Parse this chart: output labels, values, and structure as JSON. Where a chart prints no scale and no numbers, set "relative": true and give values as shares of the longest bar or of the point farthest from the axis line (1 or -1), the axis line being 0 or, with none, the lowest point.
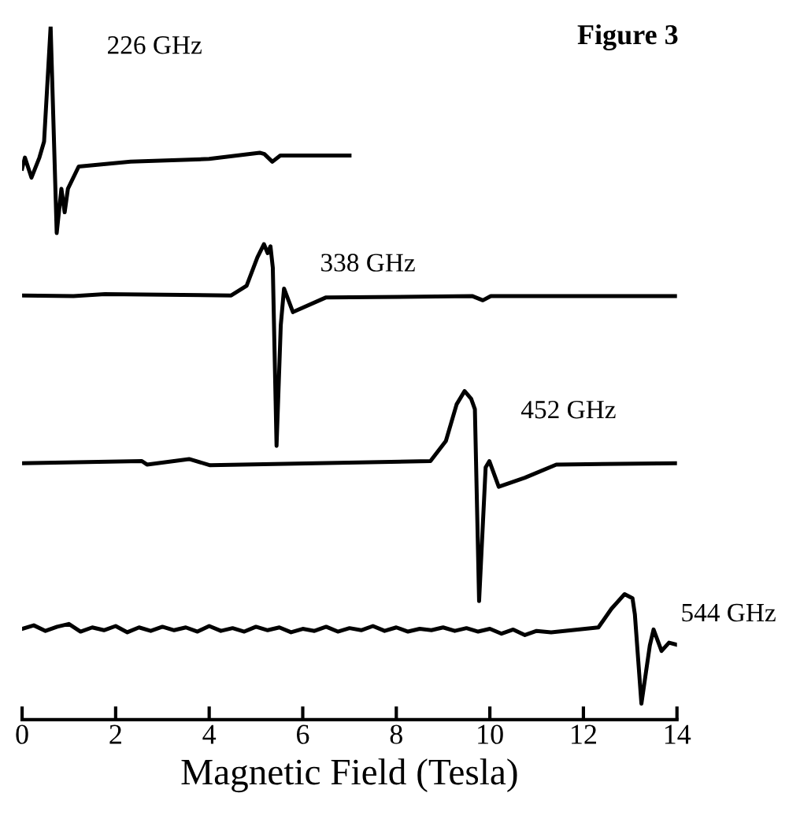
{
  "chart_data": {
    "type": "line",
    "title": "Figure 3",
    "xlabel": "Magnetic Field (Tesla)",
    "relative": true,
    "xlim": [
      0,
      14
    ],
    "xticks": [
      0,
      2,
      4,
      6,
      8,
      10,
      12,
      14
    ],
    "grid": false,
    "legend": false,
    "marker": "none",
    "line_style": "solid",
    "series": [
      {
        "name": "226 GHz",
        "color": "#000000",
        "x": [
          0,
          0.06,
          0.2,
          0.37,
          0.47,
          0.61,
          0.74,
          0.84,
          0.91,
          0.98,
          1.21,
          2.32,
          4.0,
          5.08,
          5.18,
          5.35,
          5.52,
          7.0
        ],
        "values": [
          0.795,
          0.811,
          0.782,
          0.811,
          0.834,
          1.0,
          0.702,
          0.766,
          0.732,
          0.766,
          0.798,
          0.805,
          0.809,
          0.818,
          0.816,
          0.805,
          0.814,
          0.814
        ]
      },
      {
        "name": "338 GHz",
        "color": "#000000",
        "x": [
          0,
          1.1,
          1.77,
          4.47,
          4.8,
          5.03,
          5.17,
          5.25,
          5.31,
          5.36,
          5.44,
          5.53,
          5.6,
          5.79,
          6.49,
          9.63,
          9.85,
          10.02,
          14.0
        ],
        "values": [
          0.612,
          0.611,
          0.614,
          0.612,
          0.626,
          0.667,
          0.686,
          0.673,
          0.683,
          0.652,
          0.395,
          0.569,
          0.622,
          0.588,
          0.609,
          0.611,
          0.605,
          0.611,
          0.611
        ]
      },
      {
        "name": "452 GHz",
        "color": "#000000",
        "x": [
          0,
          2.56,
          2.67,
          3.57,
          4.02,
          8.73,
          9.06,
          9.29,
          9.46,
          9.6,
          9.68,
          9.77,
          9.91,
          9.99,
          10.19,
          10.75,
          11.42,
          14.0
        ],
        "values": [
          0.37,
          0.373,
          0.368,
          0.376,
          0.367,
          0.373,
          0.402,
          0.455,
          0.474,
          0.463,
          0.448,
          0.171,
          0.364,
          0.373,
          0.336,
          0.349,
          0.368,
          0.37
        ]
      },
      {
        "name": "544 GHz",
        "color": "#000000",
        "x": [
          0,
          0.25,
          0.5,
          0.75,
          1.0,
          1.25,
          1.5,
          1.75,
          2.0,
          2.25,
          2.5,
          2.75,
          3.0,
          3.25,
          3.5,
          3.75,
          4.0,
          4.25,
          4.5,
          4.75,
          5.0,
          5.25,
          5.5,
          5.75,
          6.0,
          6.25,
          6.5,
          6.75,
          7.0,
          7.25,
          7.5,
          7.75,
          8.0,
          8.25,
          8.5,
          8.75,
          9.0,
          9.25,
          9.5,
          9.75,
          10.0,
          10.25,
          10.5,
          10.75,
          11.0,
          11.31,
          12.32,
          12.6,
          12.88,
          13.05,
          13.1,
          13.24,
          13.42,
          13.5,
          13.67,
          13.83,
          14.0
        ],
        "values": [
          0.131,
          0.136,
          0.128,
          0.134,
          0.138,
          0.127,
          0.133,
          0.129,
          0.135,
          0.126,
          0.133,
          0.128,
          0.134,
          0.129,
          0.133,
          0.127,
          0.135,
          0.128,
          0.132,
          0.127,
          0.134,
          0.129,
          0.133,
          0.126,
          0.131,
          0.128,
          0.134,
          0.127,
          0.132,
          0.129,
          0.135,
          0.128,
          0.133,
          0.127,
          0.131,
          0.129,
          0.133,
          0.128,
          0.132,
          0.127,
          0.131,
          0.124,
          0.13,
          0.122,
          0.128,
          0.126,
          0.133,
          0.16,
          0.181,
          0.175,
          0.152,
          0.023,
          0.107,
          0.13,
          0.099,
          0.111,
          0.108
        ]
      }
    ]
  }
}
